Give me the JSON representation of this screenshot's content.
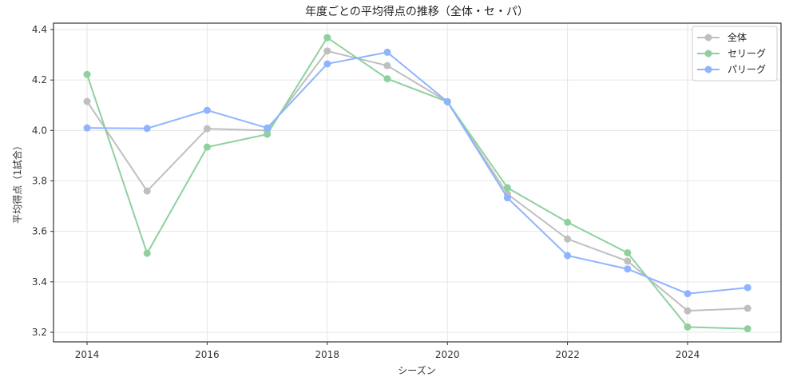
{
  "chart_data": {
    "type": "line",
    "title": "年度ごとの平均得点の推移（全体・セ・パ）",
    "xlabel": "シーズン",
    "ylabel": "平均得点（1試合）",
    "x": [
      2014,
      2015,
      2016,
      2017,
      2018,
      2019,
      2020,
      2021,
      2022,
      2023,
      2024,
      2025
    ],
    "xticks": [
      2014,
      2016,
      2018,
      2020,
      2022,
      2024
    ],
    "yticks": [
      3.2,
      3.4,
      3.6,
      3.8,
      4.0,
      4.2,
      4.4
    ],
    "ytick_labels": [
      "3.2",
      "3.4",
      "3.6",
      "3.8",
      "4.0",
      "4.2",
      "4.4"
    ],
    "xlim": [
      2013.5,
      2025.5
    ],
    "ylim": [
      3.175,
      4.425
    ],
    "grid": true,
    "legend_position": "upper right",
    "series": [
      {
        "name": "全体",
        "color": "#bfbfbf",
        "marker": "circle",
        "values": [
          4.115,
          3.76,
          4.007,
          4.0,
          4.315,
          4.257,
          4.114,
          3.748,
          3.57,
          3.482,
          3.285,
          3.295
        ]
      },
      {
        "name": "セリーグ",
        "color": "#8fd19e",
        "marker": "circle",
        "values": [
          4.222,
          3.513,
          3.934,
          3.985,
          4.368,
          4.205,
          4.114,
          3.773,
          3.636,
          3.515,
          3.221,
          3.214
        ]
      },
      {
        "name": "パリーグ",
        "color": "#8fb4ff",
        "marker": "circle",
        "values": [
          4.01,
          4.008,
          4.08,
          4.01,
          4.264,
          4.31,
          4.114,
          3.733,
          3.504,
          3.451,
          3.353,
          3.377
        ]
      }
    ]
  }
}
